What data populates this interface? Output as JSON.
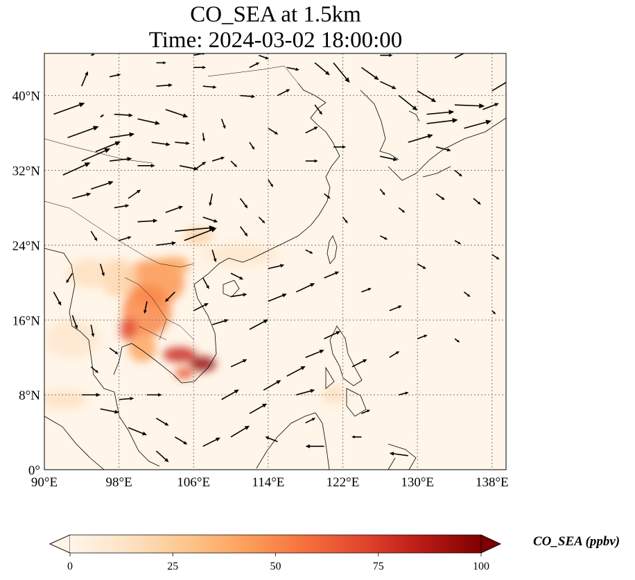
{
  "title": {
    "line1": "CO_SEA at 1.5km",
    "line2": "Time: 2024-03-02 18:00:00"
  },
  "map": {
    "lon_range": [
      90,
      139.5
    ],
    "lat_range": [
      0,
      44.5
    ],
    "x_ticks": [
      {
        "value": 90,
        "label": "90°E"
      },
      {
        "value": 98,
        "label": "98°E"
      },
      {
        "value": 106,
        "label": "106°E"
      },
      {
        "value": 114,
        "label": "114°E"
      },
      {
        "value": 122,
        "label": "122°E"
      },
      {
        "value": 130,
        "label": "130°E"
      },
      {
        "value": 138,
        "label": "138°E"
      }
    ],
    "y_ticks": [
      {
        "value": 0,
        "label": "0°"
      },
      {
        "value": 8,
        "label": "8°N"
      },
      {
        "value": 16,
        "label": "16°N"
      },
      {
        "value": 24,
        "label": "24°N"
      },
      {
        "value": 32,
        "label": "32°N"
      },
      {
        "value": 40,
        "label": "40°N"
      }
    ],
    "gridlines": true,
    "background_color": "#fff5e8",
    "co_hotspots": [
      {
        "lon": 101.8,
        "lat": 20.0,
        "rlon": 3.2,
        "rlat": 2.5,
        "value": 45
      },
      {
        "lon": 101.0,
        "lat": 17.0,
        "rlon": 2.6,
        "rlat": 2.8,
        "value": 50
      },
      {
        "lon": 99.0,
        "lat": 15.0,
        "rlon": 0.9,
        "rlat": 1.2,
        "value": 70
      },
      {
        "lon": 104.5,
        "lat": 12.3,
        "rlon": 1.8,
        "rlat": 0.8,
        "value": 80
      },
      {
        "lon": 107.0,
        "lat": 11.3,
        "rlon": 1.4,
        "rlat": 0.8,
        "value": 95
      },
      {
        "lon": 105.0,
        "lat": 10.3,
        "rlon": 1.0,
        "rlat": 0.6,
        "value": 65
      },
      {
        "lon": 103.8,
        "lat": 21.8,
        "rlon": 1.8,
        "rlat": 1.0,
        "value": 40
      },
      {
        "lon": 106.5,
        "lat": 25.0,
        "rlon": 1.5,
        "rlat": 0.9,
        "value": 22
      },
      {
        "lon": 98.0,
        "lat": 20.5,
        "rlon": 2.0,
        "rlat": 2.0,
        "value": 20
      },
      {
        "lon": 95.0,
        "lat": 21.0,
        "rlon": 2.5,
        "rlat": 1.5,
        "value": 15
      },
      {
        "lon": 93.0,
        "lat": 14.0,
        "rlon": 3.0,
        "rlat": 2.0,
        "value": 10
      },
      {
        "lon": 92.0,
        "lat": 7.5,
        "rlon": 2.5,
        "rlat": 1.0,
        "value": 14
      },
      {
        "lon": 111.0,
        "lat": 23.0,
        "rlon": 4.0,
        "rlat": 1.2,
        "value": 10
      },
      {
        "lon": 121.0,
        "lat": 8.0,
        "rlon": 1.2,
        "rlat": 1.0,
        "value": 15
      },
      {
        "lon": 100.5,
        "lat": 13.0,
        "rlon": 1.5,
        "rlat": 1.5,
        "value": 40
      }
    ],
    "wind_vectors": [
      [
        91,
        38,
        2.5,
        0.9
      ],
      [
        92.5,
        35.5,
        2.5,
        0.9
      ],
      [
        94,
        33,
        2.3,
        1.0
      ],
      [
        92,
        31.5,
        2.2,
        1.0
      ],
      [
        95.5,
        34,
        2.0,
        0.8
      ],
      [
        97,
        35.5,
        2.0,
        0.3
      ],
      [
        97.5,
        38,
        1.5,
        -0.1
      ],
      [
        100,
        37.5,
        1.8,
        -0.4
      ],
      [
        103,
        38.5,
        1.8,
        -0.6
      ],
      [
        101.5,
        35,
        1.5,
        -0.2
      ],
      [
        104,
        35,
        1.2,
        -0.1
      ],
      [
        104.5,
        32.5,
        1.5,
        -0.3
      ],
      [
        100,
        32.5,
        1.4,
        0
      ],
      [
        97,
        33,
        1.8,
        0.2
      ],
      [
        95,
        30,
        1.8,
        0.6
      ],
      [
        93,
        29,
        1.5,
        0.4
      ],
      [
        97.5,
        28,
        1.2,
        0.2
      ],
      [
        100,
        26.5,
        1.6,
        0.1
      ],
      [
        103,
        27.5,
        1.4,
        0.5
      ],
      [
        107,
        27,
        1.2,
        -0.4
      ],
      [
        104,
        25.5,
        3.2,
        0.3
      ],
      [
        105,
        24.5,
        2.6,
        1.0
      ],
      [
        102,
        24,
        1.6,
        0.2
      ],
      [
        98,
        24.5,
        1.0,
        0.3
      ],
      [
        95,
        25.5,
        0.5,
        -0.8
      ],
      [
        96,
        22,
        0.3,
        -1.0
      ],
      [
        93,
        21,
        -0.5,
        -0.8
      ],
      [
        91,
        19,
        0.6,
        -1.1
      ],
      [
        93,
        16.5,
        0.4,
        -1.1
      ],
      [
        95,
        15.5,
        0.2,
        -1.0
      ],
      [
        97,
        13,
        0.7,
        -0.5
      ],
      [
        95,
        11,
        0.6,
        -0.5
      ],
      [
        94,
        8,
        1.5,
        0
      ],
      [
        96,
        6.5,
        1.5,
        -0.3
      ],
      [
        99,
        4.5,
        1.5,
        -0.6
      ],
      [
        98,
        7.5,
        1.2,
        0.1
      ],
      [
        101,
        8,
        1.2,
        0
      ],
      [
        102,
        5.5,
        1.0,
        -0.6
      ],
      [
        104,
        3.5,
        1.0,
        -0.6
      ],
      [
        102,
        2,
        1.0,
        -0.9
      ],
      [
        107,
        2.5,
        1.4,
        0.7
      ],
      [
        110,
        3.5,
        1.5,
        0.9
      ],
      [
        112,
        6,
        1.4,
        0.8
      ],
      [
        109,
        7.5,
        1.4,
        0.8
      ],
      [
        113.5,
        8.5,
        1.4,
        0.8
      ],
      [
        116,
        10,
        1.5,
        0.8
      ],
      [
        118,
        12,
        1.5,
        0.6
      ],
      [
        117,
        8,
        1.5,
        0.4
      ],
      [
        110,
        11,
        1.3,
        0.6
      ],
      [
        112,
        15,
        1.5,
        0.8
      ],
      [
        108,
        15.5,
        1.3,
        0.4
      ],
      [
        106,
        17,
        1.2,
        0.6
      ],
      [
        110,
        18.5,
        1.3,
        0.2
      ],
      [
        114,
        18,
        1.5,
        0.6
      ],
      [
        117,
        19,
        1.5,
        0.7
      ],
      [
        120,
        20.5,
        1.2,
        0.5
      ],
      [
        124,
        19,
        0.8,
        0.3
      ],
      [
        127,
        17,
        1.0,
        0.4
      ],
      [
        130,
        14,
        0.8,
        0.3
      ],
      [
        127,
        12,
        0.8,
        0.5
      ],
      [
        123,
        11,
        1.2,
        0.6
      ],
      [
        120,
        14,
        1.3,
        0.6
      ],
      [
        114,
        21.5,
        1.3,
        0.3
      ],
      [
        110,
        21,
        1.0,
        -0.5
      ],
      [
        107,
        20.5,
        0.5,
        -0.9
      ],
      [
        104,
        19,
        -0.8,
        -0.8
      ],
      [
        101,
        18,
        -0.2,
        -1.0
      ],
      [
        108,
        23.5,
        0.3,
        -1.0
      ],
      [
        111,
        26,
        0.6,
        -0.8
      ],
      [
        108,
        29.5,
        -0.2,
        -1.0
      ],
      [
        111,
        29,
        0.6,
        -0.8
      ],
      [
        113,
        27,
        0.5,
        -0.5
      ],
      [
        114,
        31,
        0.4,
        -0.6
      ],
      [
        110,
        33,
        0.5,
        -0.5
      ],
      [
        112,
        35,
        0.4,
        -0.6
      ],
      [
        107,
        36,
        0.1,
        -0.7
      ],
      [
        106,
        32,
        1.0,
        0.7
      ],
      [
        108,
        33,
        1.0,
        0.3
      ],
      [
        114,
        36.5,
        0.8,
        -0.5
      ],
      [
        118,
        36,
        1.0,
        0.5
      ],
      [
        118,
        33,
        1.0,
        0
      ],
      [
        121,
        34.5,
        1.0,
        0
      ],
      [
        119,
        39,
        0.6,
        -0.8
      ],
      [
        115,
        40,
        1.0,
        0.5
      ],
      [
        111,
        40,
        1.2,
        -0.1
      ],
      [
        112,
        43,
        0.8,
        0.4
      ],
      [
        116,
        43,
        1.0,
        -0.2
      ],
      [
        119,
        43.5,
        1.2,
        -1.0
      ],
      [
        121,
        43.5,
        1.3,
        -1.6
      ],
      [
        124,
        43,
        1.4,
        -1.0
      ],
      [
        126,
        41.5,
        1.3,
        -0.6
      ],
      [
        128,
        40,
        1.5,
        -1.2
      ],
      [
        130,
        40.5,
        1.5,
        -0.9
      ],
      [
        131,
        38,
        2.2,
        0.2
      ],
      [
        134,
        39,
        2.4,
        -0.1
      ],
      [
        135,
        36.5,
        2.2,
        0.6
      ],
      [
        137,
        38.5,
        1.3,
        0.5
      ],
      [
        138,
        40.5,
        1.5,
        0.9
      ],
      [
        131,
        37,
        2.5,
        0.3
      ],
      [
        129,
        35,
        2.0,
        0.6
      ],
      [
        126,
        33.5,
        1.4,
        -0.3
      ],
      [
        132,
        34.5,
        1.2,
        -0.3
      ],
      [
        134,
        32,
        0.6,
        -0.5
      ],
      [
        136,
        29,
        0.6,
        -0.5
      ],
      [
        132,
        29.5,
        0.7,
        -0.5
      ],
      [
        128,
        28,
        0.5,
        -0.4
      ],
      [
        126,
        25,
        0.6,
        -0.3
      ],
      [
        130,
        22,
        0.7,
        -0.4
      ],
      [
        134,
        24.5,
        0.5,
        -0.3
      ],
      [
        138,
        23,
        0.6,
        -0.4
      ],
      [
        135,
        19,
        0.5,
        -0.4
      ],
      [
        138,
        17,
        0.3,
        -0.3
      ],
      [
        134,
        14,
        0.4,
        -0.3
      ],
      [
        128,
        8,
        0.8,
        0.2
      ],
      [
        124,
        6,
        0.7,
        0.3
      ],
      [
        118,
        5,
        0.8,
        0.4
      ],
      [
        120,
        2.5,
        -1.5,
        0
      ],
      [
        115,
        3,
        -1.0,
        0.4
      ],
      [
        124,
        3.5,
        -0.8,
        0
      ],
      [
        129,
        1.5,
        -1.5,
        0.2
      ],
      [
        126,
        30,
        0.4,
        -0.5
      ],
      [
        122,
        27,
        0.4,
        -0.5
      ],
      [
        120,
        29.5,
        0.5,
        -0.4
      ],
      [
        118,
        23.5,
        0.6,
        -0.3
      ],
      [
        102,
        41,
        1.3,
        0.1
      ],
      [
        107,
        41,
        1.1,
        -0.1
      ],
      [
        106,
        43,
        1.0,
        0
      ],
      [
        102,
        43.5,
        0.8,
        0
      ],
      [
        97,
        42,
        0.9,
        0.2
      ],
      [
        94,
        41,
        0.5,
        1.2
      ],
      [
        95,
        44.3,
        0.3,
        0.1
      ],
      [
        106,
        44.3,
        1.0,
        0.2
      ],
      [
        113,
        44.3,
        0.8,
        -0.3
      ],
      [
        126,
        44.3,
        1.0,
        0
      ],
      [
        134,
        44,
        1.5,
        0.8
      ],
      [
        99,
        29,
        1.0,
        0.7
      ],
      [
        109,
        37.5,
        0.3,
        -0.8
      ],
      [
        96,
        37.7,
        0.3,
        0.2
      ]
    ]
  },
  "colorbar": {
    "label": "CO_SEA (ppbv)",
    "min": 0,
    "max": 100,
    "extend": "both",
    "ticks": [
      {
        "value": 0,
        "label": "0"
      },
      {
        "value": 25,
        "label": "25"
      },
      {
        "value": 50,
        "label": "50"
      },
      {
        "value": 75,
        "label": "75"
      },
      {
        "value": 100,
        "label": "100"
      }
    ],
    "colors": [
      "#fff5eb",
      "#fee2c3",
      "#fdc58c",
      "#fd9f5a",
      "#f6703c",
      "#e0452c",
      "#b91a16",
      "#7f0000"
    ]
  }
}
